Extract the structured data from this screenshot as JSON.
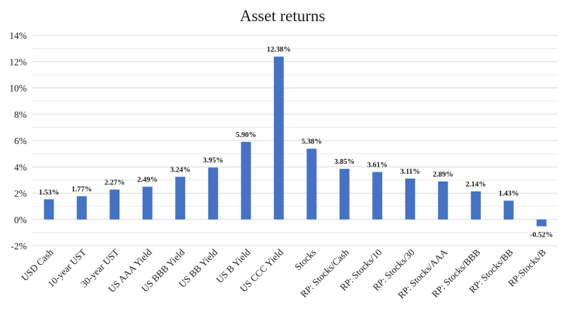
{
  "chart_data": {
    "type": "bar",
    "title": "Asset returns",
    "xlabel": "",
    "ylabel": "",
    "ylim": [
      -2,
      14
    ],
    "yticks": [
      -2,
      0,
      2,
      4,
      6,
      8,
      10,
      12,
      14
    ],
    "ytick_labels": [
      "-2%",
      "0%",
      "2%",
      "4%",
      "6%",
      "8%",
      "10%",
      "12%",
      "14%"
    ],
    "grid": true,
    "bar_color": "#4472C4",
    "categories": [
      "USD Cash",
      "10-year UST",
      "30-year UST",
      "US AAA Yield",
      "US BBB Yield",
      "US BB Yield",
      "US B Yield",
      "US CCC Yield",
      "Stocks",
      "RP: Stocks/Cash",
      "RP: Stocks/10",
      "RP: Stocks/30",
      "RP: Stocks/AAA",
      "RP: Stocks/BBB",
      "RP: Stocks/BB",
      "RP:Stocks/B"
    ],
    "values": [
      1.53,
      1.77,
      2.27,
      2.49,
      3.24,
      3.95,
      5.9,
      12.38,
      5.38,
      3.85,
      3.61,
      3.11,
      2.89,
      2.14,
      1.43,
      -0.52
    ],
    "data_labels": [
      "1.53%",
      "1.77%",
      "2.27%",
      "2.49%",
      "3.24%",
      "3.95%",
      "5.90%",
      "12.38%",
      "5.38%",
      "3.85%",
      "3.61%",
      "3.11%",
      "2.89%",
      "2.14%",
      "1.43%",
      "-0.52%"
    ]
  }
}
